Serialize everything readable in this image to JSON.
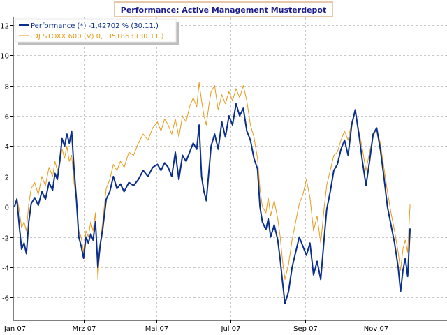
{
  "chart_data": {
    "type": "line",
    "title": "Performance: Active Management Musterdepot",
    "xlabel": "",
    "ylabel": "",
    "x_range": [
      "2007-01-01",
      "2007-12-31"
    ],
    "ylim": [
      -7.5,
      12.5
    ],
    "yticks": [
      -6,
      -4,
      -2,
      0,
      2,
      4,
      6,
      8,
      10,
      12
    ],
    "xticks": [
      {
        "date": "2007-01-02",
        "label": "Jan 07"
      },
      {
        "date": "2007-03-01",
        "label": "Mrz 07"
      },
      {
        "date": "2007-05-01",
        "label": "Mai 07"
      },
      {
        "date": "2007-07-02",
        "label": "Jul 07"
      },
      {
        "date": "2007-09-03",
        "label": "Sep 07"
      },
      {
        "date": "2007-11-01",
        "label": "Nov 07"
      }
    ],
    "grid": true,
    "legend_position": "top-left",
    "series": [
      {
        "name": "Performance (*) -1,42702 % (30.11.)",
        "color": "#0a2f8c",
        "points": [
          [
            "2007-01-02",
            0.0
          ],
          [
            "2007-01-04",
            0.5
          ],
          [
            "2007-01-06",
            -1.2
          ],
          [
            "2007-01-08",
            -2.8
          ],
          [
            "2007-01-10",
            -2.4
          ],
          [
            "2007-01-12",
            -3.1
          ],
          [
            "2007-01-14",
            -1.0
          ],
          [
            "2007-01-16",
            0.2
          ],
          [
            "2007-01-19",
            0.6
          ],
          [
            "2007-01-22",
            0.1
          ],
          [
            "2007-01-25",
            1.0
          ],
          [
            "2007-01-28",
            0.5
          ],
          [
            "2007-01-31",
            1.6
          ],
          [
            "2007-02-03",
            1.1
          ],
          [
            "2007-02-05",
            2.2
          ],
          [
            "2007-02-07",
            1.8
          ],
          [
            "2007-02-09",
            3.0
          ],
          [
            "2007-02-11",
            4.5
          ],
          [
            "2007-02-13",
            4.0
          ],
          [
            "2007-02-15",
            4.8
          ],
          [
            "2007-02-17",
            4.2
          ],
          [
            "2007-02-19",
            5.0
          ],
          [
            "2007-02-21",
            2.5
          ],
          [
            "2007-02-23",
            0.5
          ],
          [
            "2007-02-25",
            -2.0
          ],
          [
            "2007-02-27",
            -2.6
          ],
          [
            "2007-03-01",
            -3.4
          ],
          [
            "2007-03-03",
            -2.0
          ],
          [
            "2007-03-05",
            -2.4
          ],
          [
            "2007-03-07",
            -1.8
          ],
          [
            "2007-03-09",
            -2.2
          ],
          [
            "2007-03-11",
            -1.0
          ],
          [
            "2007-03-13",
            -4.0
          ],
          [
            "2007-03-15",
            -2.5
          ],
          [
            "2007-03-17",
            -1.5
          ],
          [
            "2007-03-20",
            0.5
          ],
          [
            "2007-03-23",
            1.0
          ],
          [
            "2007-03-26",
            2.0
          ],
          [
            "2007-03-29",
            1.2
          ],
          [
            "2007-04-01",
            1.5
          ],
          [
            "2007-04-04",
            1.0
          ],
          [
            "2007-04-08",
            1.6
          ],
          [
            "2007-04-12",
            1.4
          ],
          [
            "2007-04-16",
            1.8
          ],
          [
            "2007-04-20",
            2.4
          ],
          [
            "2007-04-24",
            2.0
          ],
          [
            "2007-04-28",
            2.6
          ],
          [
            "2007-05-02",
            2.8
          ],
          [
            "2007-05-05",
            2.4
          ],
          [
            "2007-05-08",
            2.9
          ],
          [
            "2007-05-11",
            2.6
          ],
          [
            "2007-05-14",
            2.0
          ],
          [
            "2007-05-17",
            3.6
          ],
          [
            "2007-05-20",
            1.8
          ],
          [
            "2007-05-23",
            3.4
          ],
          [
            "2007-05-26",
            3.0
          ],
          [
            "2007-05-29",
            3.6
          ],
          [
            "2007-06-01",
            4.2
          ],
          [
            "2007-06-04",
            3.8
          ],
          [
            "2007-06-06",
            5.4
          ],
          [
            "2007-06-08",
            2.0
          ],
          [
            "2007-06-10",
            1.0
          ],
          [
            "2007-06-12",
            0.4
          ],
          [
            "2007-06-14",
            2.2
          ],
          [
            "2007-06-16",
            4.0
          ],
          [
            "2007-06-19",
            4.8
          ],
          [
            "2007-06-22",
            3.8
          ],
          [
            "2007-06-25",
            5.6
          ],
          [
            "2007-06-28",
            4.6
          ],
          [
            "2007-07-01",
            6.0
          ],
          [
            "2007-07-04",
            5.4
          ],
          [
            "2007-07-07",
            6.8
          ],
          [
            "2007-07-10",
            6.0
          ],
          [
            "2007-07-13",
            6.5
          ],
          [
            "2007-07-16",
            5.0
          ],
          [
            "2007-07-19",
            4.4
          ],
          [
            "2007-07-22",
            3.2
          ],
          [
            "2007-07-25",
            2.5
          ],
          [
            "2007-07-27",
            0.0
          ],
          [
            "2007-07-29",
            -1.0
          ],
          [
            "2007-08-01",
            -1.5
          ],
          [
            "2007-08-03",
            -0.8
          ],
          [
            "2007-08-05",
            -2.0
          ],
          [
            "2007-08-08",
            -1.2
          ],
          [
            "2007-08-11",
            -2.2
          ],
          [
            "2007-08-13",
            -3.5
          ],
          [
            "2007-08-15",
            -5.0
          ],
          [
            "2007-08-17",
            -6.4
          ],
          [
            "2007-08-20",
            -5.6
          ],
          [
            "2007-08-23",
            -4.0
          ],
          [
            "2007-08-26",
            -3.0
          ],
          [
            "2007-08-29",
            -2.0
          ],
          [
            "2007-09-01",
            -2.6
          ],
          [
            "2007-09-04",
            -3.2
          ],
          [
            "2007-09-07",
            -2.4
          ],
          [
            "2007-09-10",
            -4.5
          ],
          [
            "2007-09-13",
            -3.6
          ],
          [
            "2007-09-16",
            -4.8
          ],
          [
            "2007-09-19",
            -2.0
          ],
          [
            "2007-09-21",
            -0.2
          ],
          [
            "2007-09-24",
            1.0
          ],
          [
            "2007-09-27",
            2.4
          ],
          [
            "2007-09-30",
            2.8
          ],
          [
            "2007-10-03",
            3.8
          ],
          [
            "2007-10-06",
            4.4
          ],
          [
            "2007-10-09",
            3.4
          ],
          [
            "2007-10-12",
            5.4
          ],
          [
            "2007-10-15",
            6.4
          ],
          [
            "2007-10-18",
            4.8
          ],
          [
            "2007-10-21",
            3.0
          ],
          [
            "2007-10-24",
            1.4
          ],
          [
            "2007-10-27",
            3.0
          ],
          [
            "2007-10-30",
            4.8
          ],
          [
            "2007-11-02",
            5.2
          ],
          [
            "2007-11-05",
            3.8
          ],
          [
            "2007-11-08",
            2.0
          ],
          [
            "2007-11-11",
            0.0
          ],
          [
            "2007-11-14",
            -1.2
          ],
          [
            "2007-11-17",
            -2.4
          ],
          [
            "2007-11-20",
            -4.0
          ],
          [
            "2007-11-22",
            -5.6
          ],
          [
            "2007-11-24",
            -4.2
          ],
          [
            "2007-11-26",
            -3.4
          ],
          [
            "2007-11-28",
            -4.6
          ],
          [
            "2007-11-30",
            -1.43
          ]
        ]
      },
      {
        "name": ".DJ STOXX 600 (V) 0,1351863 (30.11.)",
        "color": "#e89a1a",
        "points": [
          [
            "2007-01-02",
            0.0
          ],
          [
            "2007-01-04",
            0.6
          ],
          [
            "2007-01-06",
            -0.2
          ],
          [
            "2007-01-08",
            -1.4
          ],
          [
            "2007-01-10",
            -1.0
          ],
          [
            "2007-01-12",
            -1.6
          ],
          [
            "2007-01-14",
            0.2
          ],
          [
            "2007-01-16",
            1.2
          ],
          [
            "2007-01-19",
            1.6
          ],
          [
            "2007-01-22",
            0.8
          ],
          [
            "2007-01-25",
            2.0
          ],
          [
            "2007-01-28",
            1.4
          ],
          [
            "2007-01-31",
            2.6
          ],
          [
            "2007-02-03",
            2.0
          ],
          [
            "2007-02-05",
            3.0
          ],
          [
            "2007-02-07",
            2.4
          ],
          [
            "2007-02-09",
            2.8
          ],
          [
            "2007-02-11",
            3.8
          ],
          [
            "2007-02-13",
            3.2
          ],
          [
            "2007-02-15",
            4.0
          ],
          [
            "2007-02-17",
            3.0
          ],
          [
            "2007-02-19",
            3.4
          ],
          [
            "2007-02-21",
            1.6
          ],
          [
            "2007-02-23",
            0.4
          ],
          [
            "2007-02-25",
            -1.6
          ],
          [
            "2007-02-27",
            -2.0
          ],
          [
            "2007-03-01",
            -3.0
          ],
          [
            "2007-03-03",
            -1.6
          ],
          [
            "2007-03-05",
            -2.0
          ],
          [
            "2007-03-07",
            -1.0
          ],
          [
            "2007-03-09",
            -1.6
          ],
          [
            "2007-03-11",
            -0.4
          ],
          [
            "2007-03-13",
            -4.8
          ],
          [
            "2007-03-15",
            -2.4
          ],
          [
            "2007-03-17",
            -1.0
          ],
          [
            "2007-03-20",
            1.2
          ],
          [
            "2007-03-23",
            1.8
          ],
          [
            "2007-03-26",
            2.8
          ],
          [
            "2007-03-29",
            2.4
          ],
          [
            "2007-04-01",
            3.0
          ],
          [
            "2007-04-04",
            2.6
          ],
          [
            "2007-04-08",
            3.6
          ],
          [
            "2007-04-12",
            3.4
          ],
          [
            "2007-04-16",
            4.2
          ],
          [
            "2007-04-20",
            4.8
          ],
          [
            "2007-04-24",
            4.4
          ],
          [
            "2007-04-28",
            5.2
          ],
          [
            "2007-05-02",
            5.6
          ],
          [
            "2007-05-05",
            5.0
          ],
          [
            "2007-05-08",
            5.8
          ],
          [
            "2007-05-11",
            5.4
          ],
          [
            "2007-05-14",
            4.8
          ],
          [
            "2007-05-17",
            5.8
          ],
          [
            "2007-05-20",
            4.6
          ],
          [
            "2007-05-23",
            6.0
          ],
          [
            "2007-05-26",
            5.6
          ],
          [
            "2007-05-29",
            6.6
          ],
          [
            "2007-06-01",
            7.2
          ],
          [
            "2007-06-04",
            6.6
          ],
          [
            "2007-06-06",
            8.2
          ],
          [
            "2007-06-08",
            7.0
          ],
          [
            "2007-06-10",
            6.0
          ],
          [
            "2007-06-12",
            5.4
          ],
          [
            "2007-06-14",
            6.6
          ],
          [
            "2007-06-16",
            7.6
          ],
          [
            "2007-06-19",
            8.0
          ],
          [
            "2007-06-22",
            6.4
          ],
          [
            "2007-06-25",
            7.4
          ],
          [
            "2007-06-28",
            6.8
          ],
          [
            "2007-07-01",
            7.6
          ],
          [
            "2007-07-04",
            7.0
          ],
          [
            "2007-07-07",
            7.8
          ],
          [
            "2007-07-10",
            7.2
          ],
          [
            "2007-07-13",
            8.0
          ],
          [
            "2007-07-16",
            7.0
          ],
          [
            "2007-07-19",
            5.4
          ],
          [
            "2007-07-22",
            4.6
          ],
          [
            "2007-07-25",
            3.2
          ],
          [
            "2007-07-27",
            1.2
          ],
          [
            "2007-07-29",
            0.0
          ],
          [
            "2007-08-01",
            -0.4
          ],
          [
            "2007-08-03",
            0.6
          ],
          [
            "2007-08-05",
            -0.6
          ],
          [
            "2007-08-08",
            0.4
          ],
          [
            "2007-08-11",
            -0.8
          ],
          [
            "2007-08-13",
            -2.0
          ],
          [
            "2007-08-15",
            -3.6
          ],
          [
            "2007-08-17",
            -4.8
          ],
          [
            "2007-08-20",
            -3.8
          ],
          [
            "2007-08-23",
            -2.2
          ],
          [
            "2007-08-26",
            -1.0
          ],
          [
            "2007-08-29",
            0.2
          ],
          [
            "2007-09-01",
            0.8
          ],
          [
            "2007-09-04",
            1.8
          ],
          [
            "2007-09-07",
            0.6
          ],
          [
            "2007-09-10",
            -1.6
          ],
          [
            "2007-09-13",
            -0.6
          ],
          [
            "2007-09-16",
            -2.4
          ],
          [
            "2007-09-19",
            0.0
          ],
          [
            "2007-09-21",
            1.4
          ],
          [
            "2007-09-24",
            2.4
          ],
          [
            "2007-09-27",
            3.4
          ],
          [
            "2007-09-30",
            3.6
          ],
          [
            "2007-10-03",
            4.4
          ],
          [
            "2007-10-06",
            5.0
          ],
          [
            "2007-10-09",
            4.4
          ],
          [
            "2007-10-12",
            5.6
          ],
          [
            "2007-10-15",
            6.2
          ],
          [
            "2007-10-18",
            5.0
          ],
          [
            "2007-10-21",
            3.8
          ],
          [
            "2007-10-24",
            2.4
          ],
          [
            "2007-10-27",
            3.6
          ],
          [
            "2007-10-30",
            4.6
          ],
          [
            "2007-11-02",
            5.2
          ],
          [
            "2007-11-05",
            4.2
          ],
          [
            "2007-11-08",
            2.6
          ],
          [
            "2007-11-11",
            1.0
          ],
          [
            "2007-11-14",
            -0.4
          ],
          [
            "2007-11-17",
            -1.6
          ],
          [
            "2007-11-20",
            -3.0
          ],
          [
            "2007-11-22",
            -4.2
          ],
          [
            "2007-11-24",
            -2.8
          ],
          [
            "2007-11-26",
            -2.2
          ],
          [
            "2007-11-28",
            -3.0
          ],
          [
            "2007-11-30",
            0.14
          ]
        ]
      }
    ]
  }
}
